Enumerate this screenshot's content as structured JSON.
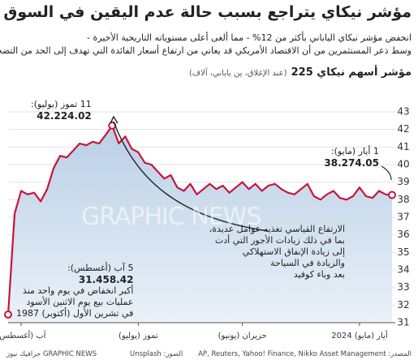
{
  "chart_data": {
    "type": "line",
    "title": "مؤشر نيكاي يتراجع بسبب حالة عدم اليقين في السوق",
    "subtitle": [
      "انخفض مؤشر نيكاي الياباني بأكثر من 12% - مما ألغى أعلى مستوياته التاريخية الأخيرة -",
      "وسط ذعر المستثمرين من أن الاقتصاد الأمريكي قد يعاني من ارتفاع أسعار الفائدة التي تهدف إلى الحد من التضخم"
    ],
    "chart_label": "مؤشر أسهم نيكاي 225",
    "chart_unit": "(عند الإغلاق، ين ياباني، آلاف)",
    "categories": [
      null,
      null,
      "آب (أغسطس)",
      null,
      null,
      null,
      null,
      null,
      null,
      null,
      null,
      null,
      null,
      null,
      null,
      null,
      null,
      null,
      null,
      null,
      "تموز (يوليو)",
      null,
      null,
      null,
      null,
      null,
      null,
      null,
      null,
      null,
      null,
      null,
      null,
      null,
      null,
      null,
      "حزيران (يونيو)",
      null,
      null,
      null,
      null,
      null,
      null,
      null,
      null,
      null,
      null,
      null,
      null,
      null,
      null,
      null,
      null,
      null,
      "أيار (مايو) 2024",
      null,
      null,
      null,
      null,
      null
    ],
    "series": [
      {
        "color": "#c8143c",
        "values": [
          31.46,
          37.2,
          38.5,
          38.3,
          38.4,
          37.9,
          38.6,
          39.8,
          40.5,
          40.4,
          40.8,
          41.2,
          41.1,
          41.3,
          41.2,
          41.7,
          42.22,
          41.2,
          41.6,
          40.9,
          40.7,
          40.1,
          40.0,
          39.6,
          39.2,
          39.4,
          38.7,
          38.5,
          38.9,
          38.3,
          38.6,
          38.9,
          38.6,
          38.8,
          38.4,
          38.7,
          39.0,
          38.6,
          38.9,
          38.5,
          38.8,
          38.9,
          38.6,
          38.4,
          38.3,
          38.6,
          38.9,
          38.2,
          38.0,
          38.3,
          38.5,
          38.1,
          38.0,
          38.2,
          38.7,
          38.2,
          38.1,
          38.5,
          38.3,
          38.27
        ]
      }
    ],
    "ylim": [
      31,
      43
    ],
    "yticks": [
      31,
      32,
      33,
      34,
      35,
      36,
      37,
      38,
      39,
      40,
      41,
      42,
      43
    ],
    "grid": true,
    "annotations": {
      "peak": [
        "11 تموز (يوليو):",
        "42.224.02"
      ],
      "end": [
        "1 أيار (مايو):",
        "38.274.05"
      ],
      "low": [
        "5 آب (أغسطس):",
        "31.458.42",
        "أكبر انخفاض في يوم واحد منذ",
        "عمليات بيع يوم الاثنين الأسود",
        "في تشرين الأول (أكتوبر) 1987"
      ],
      "rally": [
        "الارتفاع القياسي تغذيه عوامل عديدة،",
        "بما في ذلك زيادات الأجور التي أدت",
        "إلى زيادة الإنفاق الاستهلاكي",
        "والزيادة في السياحة",
        "بعد وباء كوفيد"
      ]
    },
    "watermark": "GRAPHIC NEWS",
    "source": "المصدر: AP, Reuters, Yahoo! Finance, Nikko Asset Management",
    "photos": "الصور: Unsplash",
    "logo": "GRAPHIC NEWS جرافيك نيوز"
  }
}
